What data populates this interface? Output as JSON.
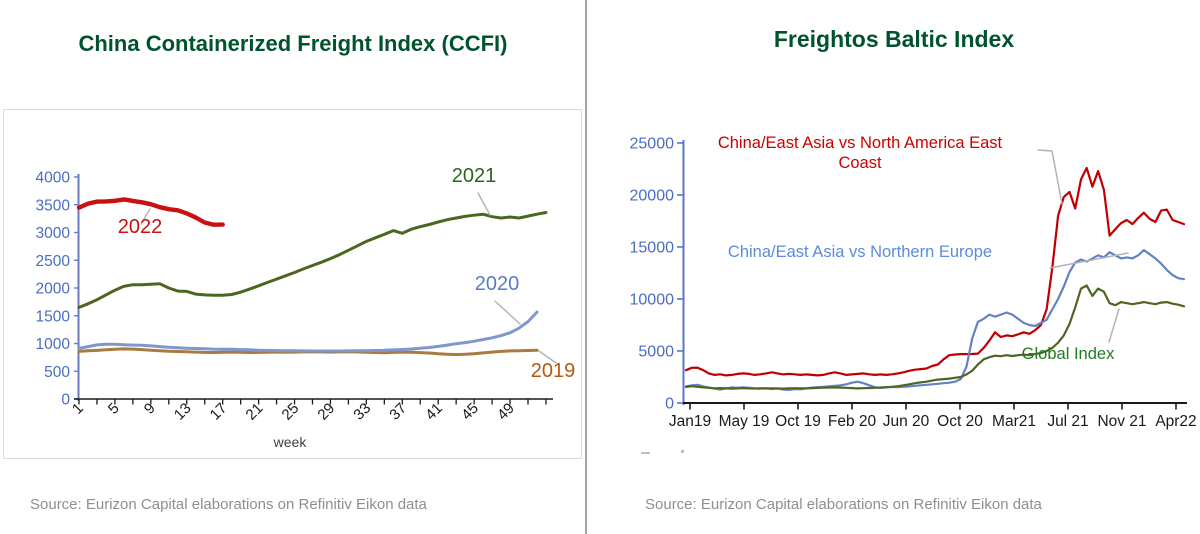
{
  "page": {
    "background": "#ffffff",
    "divider_color": "#a3a3a3",
    "title_color": "#00542d",
    "leader_line_color": "#b3b3b3",
    "source_text_color": "#8f8f8f"
  },
  "left_panel": {
    "title": "China Containerized Freight Index (CCFI)",
    "source": "Source: Eurizon Capital elaborations on Refinitiv Eikon data"
  },
  "right_panel": {
    "title": "Freightos Baltic Index",
    "source": "Source: Eurizon Capital elaborations on Refinitiv Eikon data"
  },
  "chart_data": [
    {
      "type": "line",
      "title": "China Containerized Freight Index (CCFI)",
      "xlabel": "week",
      "ylabel": "",
      "xlim": [
        1,
        53
      ],
      "ylim": [
        0,
        4000
      ],
      "ytick_step": 500,
      "xticks_labeled": [
        1,
        5,
        9,
        13,
        17,
        21,
        25,
        29,
        33,
        37,
        41,
        45,
        49
      ],
      "xtick_minor_step": 2,
      "grid": false,
      "legend": "inline-labels-with-leader-lines",
      "axis_text_color": "#4a6cc3",
      "y_axis_color": "#6b79c7",
      "x_axis_color": "#1a1a1a",
      "series": [
        {
          "name": "2019",
          "color": "#a87c3f",
          "label_color": "#b25b10",
          "start_week": 1,
          "values": [
            858,
            868,
            876,
            886,
            895,
            902,
            900,
            890,
            880,
            870,
            862,
            855,
            850,
            845,
            840,
            838,
            842,
            845,
            842,
            838,
            840,
            843,
            846,
            843,
            845,
            848,
            850,
            848,
            845,
            848,
            850,
            846,
            842,
            838,
            835,
            840,
            845,
            842,
            836,
            828,
            815,
            806,
            800,
            806,
            816,
            830,
            845,
            858,
            866,
            870,
            873,
            878
          ]
        },
        {
          "name": "2020",
          "color": "#8097cb",
          "label_color": "#5d7cc4",
          "start_week": 1,
          "values": [
            912,
            945,
            975,
            985,
            985,
            976,
            972,
            968,
            956,
            945,
            932,
            922,
            915,
            910,
            905,
            900,
            898,
            895,
            890,
            886,
            880,
            876,
            872,
            870,
            868,
            866,
            865,
            864,
            864,
            865,
            866,
            868,
            871,
            874,
            878,
            884,
            891,
            901,
            913,
            928,
            948,
            972,
            996,
            1016,
            1042,
            1072,
            1102,
            1142,
            1192,
            1275,
            1395,
            1565
          ]
        },
        {
          "name": "2021",
          "color": "#4d661f",
          "label_color": "#2f6420",
          "start_week": 1,
          "values": [
            1650,
            1715,
            1790,
            1875,
            1960,
            2030,
            2060,
            2060,
            2068,
            2075,
            2000,
            1945,
            1938,
            1890,
            1875,
            1868,
            1868,
            1882,
            1925,
            1980,
            2040,
            2100,
            2160,
            2220,
            2280,
            2345,
            2405,
            2465,
            2530,
            2600,
            2680,
            2760,
            2840,
            2905,
            2965,
            3035,
            2985,
            3060,
            3105,
            3145,
            3190,
            3230,
            3262,
            3290,
            3312,
            3330,
            3285,
            3262,
            3280,
            3262,
            3295,
            3330,
            3360
          ]
        },
        {
          "name": "2022",
          "color": "#c81111",
          "label_color": "#c81111",
          "start_week": 1,
          "line_width": 4.4,
          "values": [
            3448,
            3520,
            3556,
            3560,
            3572,
            3596,
            3570,
            3545,
            3510,
            3455,
            3420,
            3400,
            3345,
            3270,
            3180,
            3140,
            3142
          ]
        }
      ]
    },
    {
      "type": "line",
      "title": "Freightos Baltic Index",
      "xlabel": "",
      "ylabel": "",
      "x_tick_labels": [
        "Jan19",
        "May 19",
        "Oct 19",
        "Feb 20",
        "Jun 20",
        "Oct 20",
        "Mar21",
        "Jul 21",
        "Nov 21",
        "Apr22"
      ],
      "x_range_note": "Jan 2019 - Apr 2022, plotted at two-week intervals",
      "ylim": [
        0,
        25000
      ],
      "ytick_step": 5000,
      "grid": false,
      "legend": "inline-labels-with-leader-lines",
      "axis_text_color": "#4a6cc3",
      "y_axis_color": "#5b76c4",
      "x_axis_color": "#1a1a1a",
      "series": [
        {
          "name": "China/East Asia vs North America East Coast",
          "label_lines": [
            "China/East Asia vs North America East",
            "Coast"
          ],
          "color": "#c00000",
          "label_color": "#cc0000",
          "values": [
            3150,
            3380,
            3400,
            3150,
            2850,
            2700,
            2760,
            2650,
            2700,
            2800,
            2850,
            2800,
            2700,
            2760,
            2850,
            2950,
            2850,
            2750,
            2800,
            2760,
            2700,
            2750,
            2700,
            2650,
            2700,
            2850,
            2950,
            2850,
            2700,
            2750,
            2800,
            2850,
            2760,
            2700,
            2750,
            2700,
            2760,
            2850,
            2950,
            3100,
            3200,
            3260,
            3320,
            3560,
            3700,
            4200,
            4600,
            4660,
            4700,
            4700,
            4710,
            4750,
            5300,
            6000,
            6800,
            6350,
            6500,
            6420,
            6600,
            6800,
            6650,
            7000,
            7500,
            9000,
            13000,
            18000,
            19800,
            20300,
            18700,
            21500,
            22600,
            20800,
            22300,
            20500,
            16100,
            16700,
            17300,
            17600,
            17200,
            17800,
            18300,
            17700,
            17400,
            18500,
            18600,
            17600,
            17400,
            17200
          ]
        },
        {
          "name": "China/East Asia vs Northern Europe",
          "label_lines": [
            "China/East Asia vs Northern Europe"
          ],
          "color": "#6382c4",
          "label_color": "#5b8cdd",
          "values": [
            1600,
            1700,
            1750,
            1600,
            1480,
            1380,
            1300,
            1400,
            1500,
            1450,
            1500,
            1460,
            1400,
            1380,
            1400,
            1350,
            1400,
            1300,
            1260,
            1350,
            1320,
            1400,
            1480,
            1520,
            1550,
            1600,
            1650,
            1700,
            1800,
            1950,
            2050,
            1900,
            1700,
            1520,
            1450,
            1500,
            1550,
            1520,
            1560,
            1600,
            1650,
            1700,
            1750,
            1800,
            1850,
            1900,
            1950,
            2050,
            2300,
            3500,
            6200,
            7800,
            8100,
            8500,
            8300,
            8500,
            8700,
            8500,
            8100,
            7700,
            7500,
            7400,
            7700,
            8000,
            9000,
            10000,
            11200,
            12600,
            13500,
            13800,
            13600,
            13900,
            14200,
            14000,
            14500,
            14200,
            13900,
            14000,
            13900,
            14200,
            14700,
            14300,
            13900,
            13400,
            12800,
            12300,
            12000,
            11900
          ]
        },
        {
          "name": "Global Index",
          "label_lines": [
            "Global Index"
          ],
          "color": "#4f6522",
          "label_color": "#1f7d1f",
          "values": [
            1550,
            1620,
            1560,
            1500,
            1460,
            1400,
            1430,
            1400,
            1380,
            1400,
            1430,
            1400,
            1390,
            1400,
            1410,
            1400,
            1390,
            1380,
            1400,
            1420,
            1400,
            1410,
            1430,
            1450,
            1470,
            1490,
            1500,
            1480,
            1460,
            1430,
            1400,
            1420,
            1440,
            1460,
            1490,
            1520,
            1560,
            1620,
            1700,
            1800,
            1900,
            1980,
            2050,
            2150,
            2250,
            2300,
            2350,
            2420,
            2500,
            2750,
            3100,
            3700,
            4200,
            4400,
            4550,
            4500,
            4600,
            4520,
            4600,
            4650,
            4600,
            4700,
            4800,
            5000,
            5300,
            5800,
            6500,
            7600,
            9200,
            11000,
            11300,
            10300,
            11000,
            10700,
            9600,
            9400,
            9700,
            9600,
            9500,
            9600,
            9700,
            9600,
            9500,
            9650,
            9700,
            9550,
            9450,
            9300
          ]
        }
      ]
    }
  ]
}
